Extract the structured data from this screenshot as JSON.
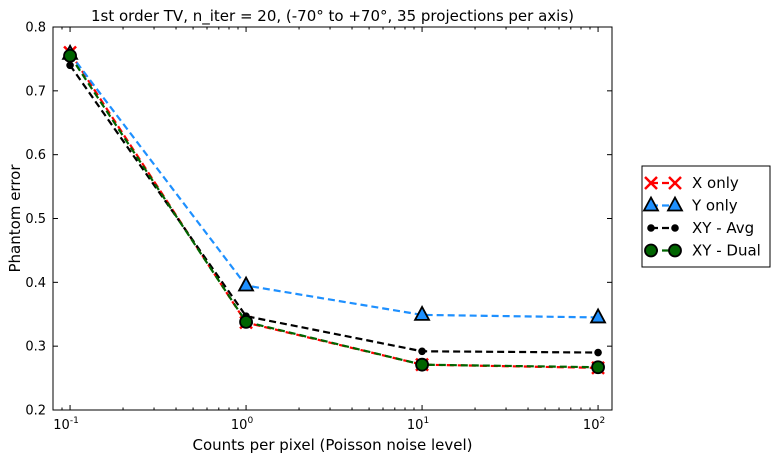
{
  "chart_data": {
    "type": "line",
    "title": "1st order TV, n_iter = 20, (-70° to +70°, 35 projections per axis)",
    "xlabel": "Counts per pixel (Poisson noise level)",
    "ylabel": "Phantom error",
    "xscale": "log",
    "xlim": [
      0.08,
      120
    ],
    "ylim": [
      0.2,
      0.8
    ],
    "grid": false,
    "legend_position": "outside-right",
    "x": [
      0.1,
      1,
      10,
      100
    ],
    "x_tick_labels": [
      {
        "base": "10",
        "exp": "-1"
      },
      {
        "base": "10",
        "exp": "0"
      },
      {
        "base": "10",
        "exp": "1"
      },
      {
        "base": "10",
        "exp": "2"
      }
    ],
    "y_ticks": [
      "0.2",
      "0.3",
      "0.4",
      "0.5",
      "0.6",
      "0.7",
      "0.8"
    ],
    "series": [
      {
        "name": "X only",
        "values": [
          0.76,
          0.337,
          0.271,
          0.266
        ],
        "color": "#ff0000",
        "marker": "x",
        "linestyle": "dashed"
      },
      {
        "name": "Y only",
        "values": [
          0.758,
          0.395,
          0.349,
          0.345
        ],
        "color": "#1e90ff",
        "marker": "triangle",
        "linestyle": "dashed"
      },
      {
        "name": "XY - Avg",
        "values": [
          0.74,
          0.347,
          0.292,
          0.29
        ],
        "color": "#000000",
        "marker": "dot",
        "linestyle": "dashed"
      },
      {
        "name": "XY - Dual",
        "values": [
          0.755,
          0.338,
          0.271,
          0.267
        ],
        "color": "#006400",
        "marker": "circle",
        "linestyle": "dashed"
      }
    ]
  }
}
